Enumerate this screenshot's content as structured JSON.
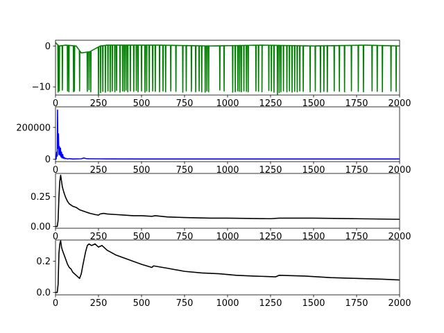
{
  "chart_data": [
    {
      "type": "line",
      "title": "",
      "xlabel": "",
      "ylabel": "",
      "xlim": [
        0,
        2000
      ],
      "ylim": [
        -12.0,
        1.4
      ],
      "xticks": [
        0,
        250,
        500,
        750,
        1000,
        1250,
        1500,
        1750,
        2000
      ],
      "xtick_labels": [
        "0",
        "250",
        "500",
        "750",
        "1000",
        "1250",
        "1500",
        "1750",
        "2000"
      ],
      "yticks": [
        0,
        -10
      ],
      "ytick_labels": [
        "0",
        "−10"
      ],
      "series": [
        {
          "color": "#008000",
          "baseline": [
            [
              0,
              0.8
            ],
            [
              20,
              0.0
            ],
            [
              60,
              0.2
            ],
            [
              120,
              0.0
            ],
            [
              150,
              -1.7
            ],
            [
              200,
              -1.4
            ],
            [
              260,
              0.0
            ],
            [
              300,
              0.2
            ],
            [
              600,
              0.2
            ],
            [
              900,
              0.0
            ],
            [
              1200,
              0.2
            ],
            [
              1500,
              0.0
            ],
            [
              1800,
              0.2
            ],
            [
              2000,
              0.0
            ]
          ],
          "spikes": [
            [
              15,
              -11.3
            ],
            [
              22,
              -11.0
            ],
            [
              40,
              -10.8
            ],
            [
              70,
              -11.0
            ],
            [
              78,
              -11.2
            ],
            [
              105,
              -11.2
            ],
            [
              110,
              -11.0
            ],
            [
              140,
              -11.0
            ],
            [
              185,
              -11.1
            ],
            [
              195,
              -10.7
            ],
            [
              205,
              -11.2
            ],
            [
              250,
              -11.8
            ],
            [
              262,
              -11.4
            ],
            [
              275,
              -11.1
            ],
            [
              290,
              -11.3
            ],
            [
              305,
              -11.0
            ],
            [
              318,
              -11.2
            ],
            [
              330,
              -11.0
            ],
            [
              345,
              -11.2
            ],
            [
              355,
              -10.9
            ],
            [
              375,
              -11.3
            ],
            [
              390,
              -11.0
            ],
            [
              400,
              -11.1
            ],
            [
              410,
              -10.8
            ],
            [
              420,
              -11.2
            ],
            [
              435,
              -11.0
            ],
            [
              455,
              -11.1
            ],
            [
              470,
              -10.9
            ],
            [
              480,
              -11.2
            ],
            [
              500,
              -11.0
            ],
            [
              520,
              -11.3
            ],
            [
              530,
              -11.0
            ],
            [
              545,
              -11.2
            ],
            [
              565,
              -11.0
            ],
            [
              580,
              -11.1
            ],
            [
              605,
              -11.2
            ],
            [
              625,
              -11.0
            ],
            [
              640,
              -11.2
            ],
            [
              670,
              -11.0
            ],
            [
              700,
              -11.1
            ],
            [
              740,
              -11.3
            ],
            [
              760,
              -11.0
            ],
            [
              790,
              -11.1
            ],
            [
              815,
              -11.2
            ],
            [
              835,
              -11.0
            ],
            [
              850,
              -11.2
            ],
            [
              870,
              -11.3
            ],
            [
              880,
              -11.0
            ],
            [
              890,
              -11.2
            ],
            [
              955,
              -10.8
            ],
            [
              980,
              -11.0
            ],
            [
              1030,
              -11.3
            ],
            [
              1045,
              -11.2
            ],
            [
              1060,
              -11.0
            ],
            [
              1070,
              -11.1
            ],
            [
              1080,
              -11.2
            ],
            [
              1095,
              -11.0
            ],
            [
              1110,
              -11.1
            ],
            [
              1120,
              -11.2
            ],
            [
              1165,
              -11.0
            ],
            [
              1180,
              -11.1
            ],
            [
              1200,
              -11.2
            ],
            [
              1240,
              -10.9
            ],
            [
              1255,
              -11.0
            ],
            [
              1270,
              -11.3
            ],
            [
              1290,
              -11.8
            ],
            [
              1300,
              -11.4
            ],
            [
              1310,
              -11.2
            ],
            [
              1325,
              -11.0
            ],
            [
              1345,
              -11.2
            ],
            [
              1360,
              -11.0
            ],
            [
              1375,
              -11.3
            ],
            [
              1390,
              -11.1
            ],
            [
              1405,
              -11.2
            ],
            [
              1420,
              -11.0
            ],
            [
              1440,
              -11.1
            ],
            [
              1480,
              -11.2
            ],
            [
              1510,
              -11.0
            ],
            [
              1540,
              -11.3
            ],
            [
              1560,
              -11.1
            ],
            [
              1580,
              -11.2
            ],
            [
              1620,
              -11.0
            ],
            [
              1650,
              -11.1
            ],
            [
              1680,
              -11.2
            ],
            [
              1720,
              -11.0
            ],
            [
              1760,
              -11.1
            ],
            [
              1790,
              -11.2
            ],
            [
              1840,
              -11.0
            ],
            [
              1870,
              -11.1
            ],
            [
              1900,
              -11.2
            ],
            [
              1950,
              -11.0
            ],
            [
              1980,
              -11.1
            ]
          ]
        }
      ]
    },
    {
      "type": "line",
      "title": "",
      "xlabel": "",
      "ylabel": "",
      "xlim": [
        0,
        2000
      ],
      "ylim": [
        -15000,
        330000
      ],
      "xticks": [
        0,
        250,
        500,
        750,
        1000,
        1250,
        1500,
        1750,
        2000
      ],
      "xtick_labels": [
        "0",
        "250",
        "500",
        "750",
        "1000",
        "1250",
        "1500",
        "1750",
        "2000"
      ],
      "yticks": [
        0,
        200000
      ],
      "ytick_labels": [
        "0",
        "200000"
      ],
      "series": [
        {
          "color": "#0000ff",
          "points": [
            [
              0,
              0
            ],
            [
              4,
              2000
            ],
            [
              7,
              45000
            ],
            [
              10,
              20000
            ],
            [
              12,
              310000
            ],
            [
              14,
              70000
            ],
            [
              17,
              160000
            ],
            [
              20,
              30000
            ],
            [
              23,
              80000
            ],
            [
              26,
              25000
            ],
            [
              29,
              70000
            ],
            [
              32,
              15000
            ],
            [
              35,
              45000
            ],
            [
              38,
              8000
            ],
            [
              42,
              30000
            ],
            [
              46,
              5000
            ],
            [
              50,
              12000
            ],
            [
              55,
              3000
            ],
            [
              60,
              6000
            ],
            [
              70,
              2000
            ],
            [
              80,
              4000
            ],
            [
              100,
              1500
            ],
            [
              120,
              2000
            ],
            [
              150,
              3000
            ],
            [
              165,
              8000
            ],
            [
              180,
              3500
            ],
            [
              200,
              3000
            ],
            [
              260,
              2500
            ],
            [
              300,
              2000
            ],
            [
              500,
              1800
            ],
            [
              800,
              1500
            ],
            [
              1200,
              1500
            ],
            [
              1600,
              1500
            ],
            [
              2000,
              1500
            ]
          ]
        }
      ]
    },
    {
      "type": "line",
      "title": "",
      "xlabel": "",
      "ylabel": "",
      "xlim": [
        0,
        2000
      ],
      "ylim": [
        -0.015,
        0.445
      ],
      "xticks": [
        0,
        250,
        500,
        750,
        1000,
        1250,
        1500,
        1750,
        2000
      ],
      "xtick_labels": [
        "0",
        "250",
        "500",
        "750",
        "1000",
        "1250",
        "1500",
        "1750",
        "2000"
      ],
      "yticks": [
        0.0,
        0.25
      ],
      "ytick_labels": [
        "0.00",
        "0.25"
      ],
      "series": [
        {
          "color": "#000000",
          "points": [
            [
              0,
              0
            ],
            [
              10,
              0
            ],
            [
              15,
              0.05
            ],
            [
              20,
              0.25
            ],
            [
              25,
              0.38
            ],
            [
              30,
              0.43
            ],
            [
              35,
              0.38
            ],
            [
              40,
              0.33
            ],
            [
              50,
              0.28
            ],
            [
              60,
              0.24
            ],
            [
              70,
              0.21
            ],
            [
              80,
              0.19
            ],
            [
              100,
              0.17
            ],
            [
              120,
              0.16
            ],
            [
              140,
              0.14
            ],
            [
              160,
              0.13
            ],
            [
              180,
              0.12
            ],
            [
              200,
              0.11
            ],
            [
              230,
              0.1
            ],
            [
              250,
              0.095
            ],
            [
              260,
              0.105
            ],
            [
              280,
              0.11
            ],
            [
              300,
              0.105
            ],
            [
              350,
              0.1
            ],
            [
              400,
              0.095
            ],
            [
              450,
              0.09
            ],
            [
              500,
              0.09
            ],
            [
              560,
              0.085
            ],
            [
              580,
              0.09
            ],
            [
              650,
              0.08
            ],
            [
              750,
              0.075
            ],
            [
              900,
              0.07
            ],
            [
              1000,
              0.07
            ],
            [
              1250,
              0.065
            ],
            [
              1300,
              0.07
            ],
            [
              1500,
              0.07
            ],
            [
              1750,
              0.065
            ],
            [
              2000,
              0.06
            ]
          ]
        }
      ]
    },
    {
      "type": "line",
      "title": "",
      "xlabel": "",
      "ylabel": "",
      "xlim": [
        0,
        2000
      ],
      "ylim": [
        -0.015,
        0.335
      ],
      "xticks": [
        0,
        250,
        500,
        750,
        1000,
        1250,
        1500,
        1750,
        2000
      ],
      "xtick_labels": [
        "0",
        "250",
        "500",
        "750",
        "1000",
        "1250",
        "1500",
        "1750",
        "2000"
      ],
      "yticks": [
        0.0,
        0.2
      ],
      "ytick_labels": [
        "0.0",
        "0.2"
      ],
      "series": [
        {
          "color": "#000000",
          "points": [
            [
              0,
              0
            ],
            [
              10,
              0
            ],
            [
              15,
              0.05
            ],
            [
              20,
              0.25
            ],
            [
              25,
              0.31
            ],
            [
              30,
              0.33
            ],
            [
              35,
              0.29
            ],
            [
              40,
              0.27
            ],
            [
              50,
              0.24
            ],
            [
              60,
              0.21
            ],
            [
              70,
              0.18
            ],
            [
              80,
              0.16
            ],
            [
              90,
              0.15
            ],
            [
              100,
              0.13
            ],
            [
              110,
              0.12
            ],
            [
              120,
              0.11
            ],
            [
              130,
              0.1
            ],
            [
              140,
              0.09
            ],
            [
              150,
              0.12
            ],
            [
              160,
              0.18
            ],
            [
              175,
              0.26
            ],
            [
              185,
              0.3
            ],
            [
              195,
              0.31
            ],
            [
              210,
              0.3
            ],
            [
              230,
              0.31
            ],
            [
              250,
              0.29
            ],
            [
              270,
              0.3
            ],
            [
              290,
              0.28
            ],
            [
              300,
              0.27
            ],
            [
              350,
              0.24
            ],
            [
              400,
              0.22
            ],
            [
              450,
              0.2
            ],
            [
              500,
              0.18
            ],
            [
              560,
              0.16
            ],
            [
              570,
              0.17
            ],
            [
              650,
              0.155
            ],
            [
              750,
              0.135
            ],
            [
              850,
              0.125
            ],
            [
              950,
              0.12
            ],
            [
              1050,
              0.11
            ],
            [
              1150,
              0.105
            ],
            [
              1280,
              0.1
            ],
            [
              1300,
              0.11
            ],
            [
              1450,
              0.105
            ],
            [
              1600,
              0.095
            ],
            [
              1750,
              0.09
            ],
            [
              1900,
              0.085
            ],
            [
              2000,
              0.08
            ]
          ]
        }
      ]
    }
  ]
}
